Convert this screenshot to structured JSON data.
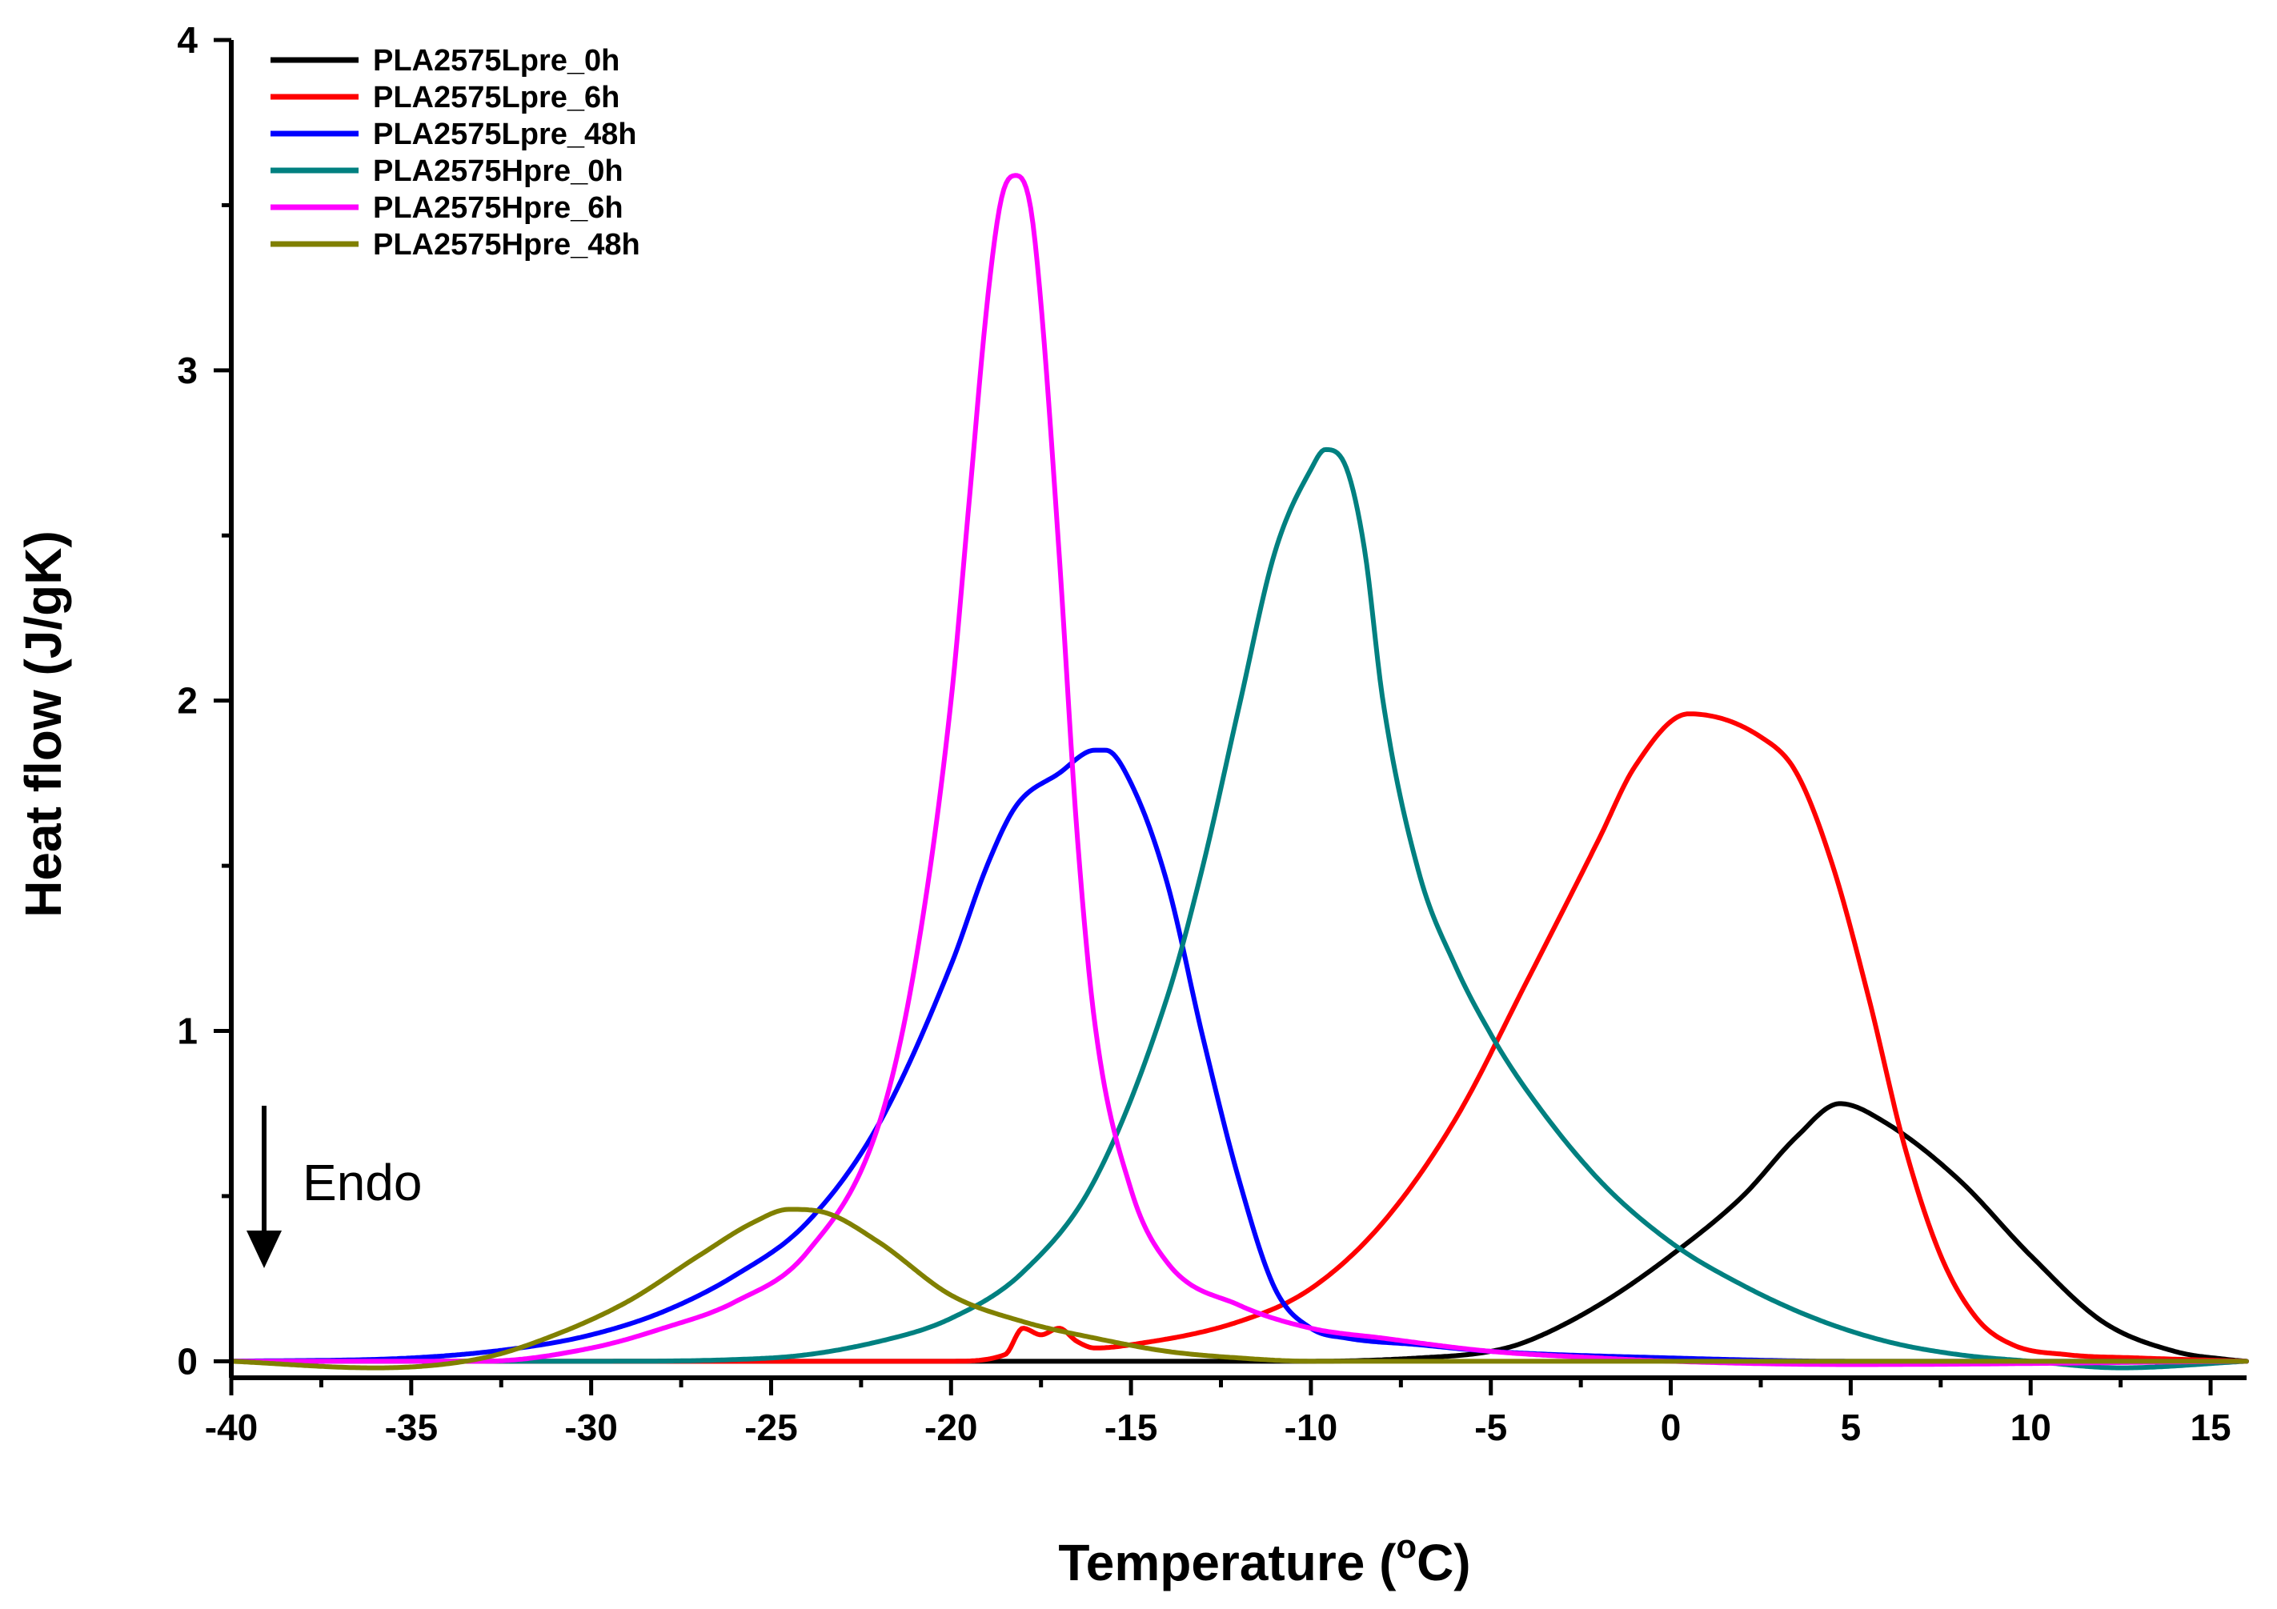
{
  "chart_data": {
    "type": "line",
    "title": "",
    "xlabel": "Temperature (",
    "xlabel_superscript": "o",
    "xlabel_suffix": "C)",
    "ylabel": "Heat flow (J/gK)",
    "xlim": [
      -40,
      16
    ],
    "ylim": [
      -0.05,
      4
    ],
    "xticks": [
      -40,
      -35,
      -30,
      -25,
      -20,
      -15,
      -10,
      -5,
      0,
      5,
      10,
      15
    ],
    "xtick_labels": [
      "-40",
      "-35",
      "-30",
      "-25",
      "-20",
      "-15",
      "-10",
      "-5",
      "0",
      "5",
      "10",
      "15"
    ],
    "yticks": [
      0,
      1,
      2,
      3,
      4
    ],
    "ytick_labels": [
      "0",
      "1",
      "2",
      "3",
      "4"
    ],
    "grid": false,
    "legend_position": "top-left",
    "annotation": {
      "text": "Endo",
      "arrow_direction": "down",
      "arrow_x": -39,
      "arrow_y_from": 0.78,
      "arrow_y_to": 0.3
    },
    "series": [
      {
        "name": "PLA2575Lpre_0h",
        "color": "#000000",
        "x": [
          -40,
          -30,
          -20,
          -15,
          -10,
          -7,
          -5,
          -4,
          -2,
          0,
          2,
          3.5,
          4.7,
          6,
          8,
          10,
          12,
          14,
          15.5,
          16
        ],
        "y": [
          0,
          0,
          0,
          0,
          0,
          0.01,
          0.03,
          0.06,
          0.17,
          0.32,
          0.5,
          0.68,
          0.78,
          0.72,
          0.55,
          0.32,
          0.12,
          0.03,
          0.005,
          0
        ]
      },
      {
        "name": "PLA2575Lpre_6h",
        "color": "#ff0000",
        "x": [
          -40,
          -30,
          -20,
          -18.5,
          -18,
          -17.5,
          -17,
          -16.5,
          -16,
          -15,
          -12,
          -10,
          -8,
          -6,
          -4,
          -2,
          -1,
          0.5,
          2.5,
          3.5,
          4.5,
          5.5,
          6.5,
          7.5,
          8.5,
          9.5,
          11,
          13,
          16
        ],
        "y": [
          0,
          0,
          0,
          0.02,
          0.1,
          0.08,
          0.1,
          0.06,
          0.04,
          0.05,
          0.12,
          0.22,
          0.42,
          0.73,
          1.15,
          1.58,
          1.8,
          1.96,
          1.89,
          1.78,
          1.5,
          1.1,
          0.65,
          0.32,
          0.13,
          0.05,
          0.02,
          0.01,
          0
        ]
      },
      {
        "name": "PLA2575Lpre_48h",
        "color": "#0000ff",
        "x": [
          -40,
          -35,
          -32,
          -30,
          -28,
          -26,
          -24,
          -22,
          -20,
          -19,
          -18.2,
          -17,
          -16,
          -15.7,
          -15,
          -14,
          -13,
          -12,
          -11,
          -10,
          -9,
          -7,
          -5,
          0,
          5,
          16
        ],
        "y": [
          0,
          0.01,
          0.04,
          0.08,
          0.15,
          0.26,
          0.42,
          0.72,
          1.2,
          1.5,
          1.68,
          1.78,
          1.85,
          1.85,
          1.75,
          1.45,
          0.98,
          0.55,
          0.22,
          0.1,
          0.07,
          0.05,
          0.03,
          0.01,
          0,
          0
        ]
      },
      {
        "name": "PLA2575Hpre_0h",
        "color": "#008080",
        "x": [
          -40,
          -30,
          -25,
          -22,
          -20,
          -18,
          -16,
          -14,
          -13,
          -12,
          -11,
          -10,
          -9.6,
          -9,
          -8.5,
          -8,
          -7,
          -6,
          -5,
          -4,
          -2,
          0,
          2,
          4,
          6,
          8,
          10,
          12.5,
          16
        ],
        "y": [
          0,
          0,
          0.01,
          0.06,
          0.13,
          0.27,
          0.55,
          1.1,
          1.5,
          1.98,
          2.45,
          2.7,
          2.76,
          2.7,
          2.45,
          2.0,
          1.48,
          1.2,
          0.99,
          0.82,
          0.55,
          0.36,
          0.23,
          0.13,
          0.06,
          0.02,
          0,
          -0.02,
          0
        ]
      },
      {
        "name": "PLA2575Hpre_6h",
        "color": "#ff00ff",
        "x": [
          -40,
          -33,
          -30,
          -28,
          -26,
          -24,
          -22,
          -21,
          -20,
          -19.5,
          -19,
          -18.6,
          -18.2,
          -17.8,
          -17.5,
          -17,
          -16.5,
          -16,
          -15,
          -14,
          -12,
          -10,
          -8,
          -5,
          -2,
          0,
          5,
          16
        ],
        "y": [
          0,
          0,
          0.04,
          0.1,
          0.18,
          0.33,
          0.72,
          1.2,
          2.0,
          2.6,
          3.2,
          3.52,
          3.59,
          3.5,
          3.2,
          2.45,
          1.6,
          1.02,
          0.52,
          0.3,
          0.17,
          0.1,
          0.07,
          0.03,
          0.01,
          0,
          -0.01,
          0
        ]
      },
      {
        "name": "PLA2575Hpre_48h",
        "color": "#808000",
        "x": [
          -40,
          -36,
          -33,
          -31,
          -29,
          -27,
          -25.5,
          -24.5,
          -23.5,
          -22,
          -20,
          -18,
          -16,
          -14,
          -12,
          -10,
          -5,
          0,
          5,
          10,
          16
        ],
        "y": [
          0,
          -0.02,
          0.01,
          0.08,
          0.18,
          0.32,
          0.42,
          0.46,
          0.45,
          0.36,
          0.2,
          0.12,
          0.07,
          0.03,
          0.01,
          0,
          0,
          0,
          0,
          0,
          0
        ]
      }
    ]
  }
}
